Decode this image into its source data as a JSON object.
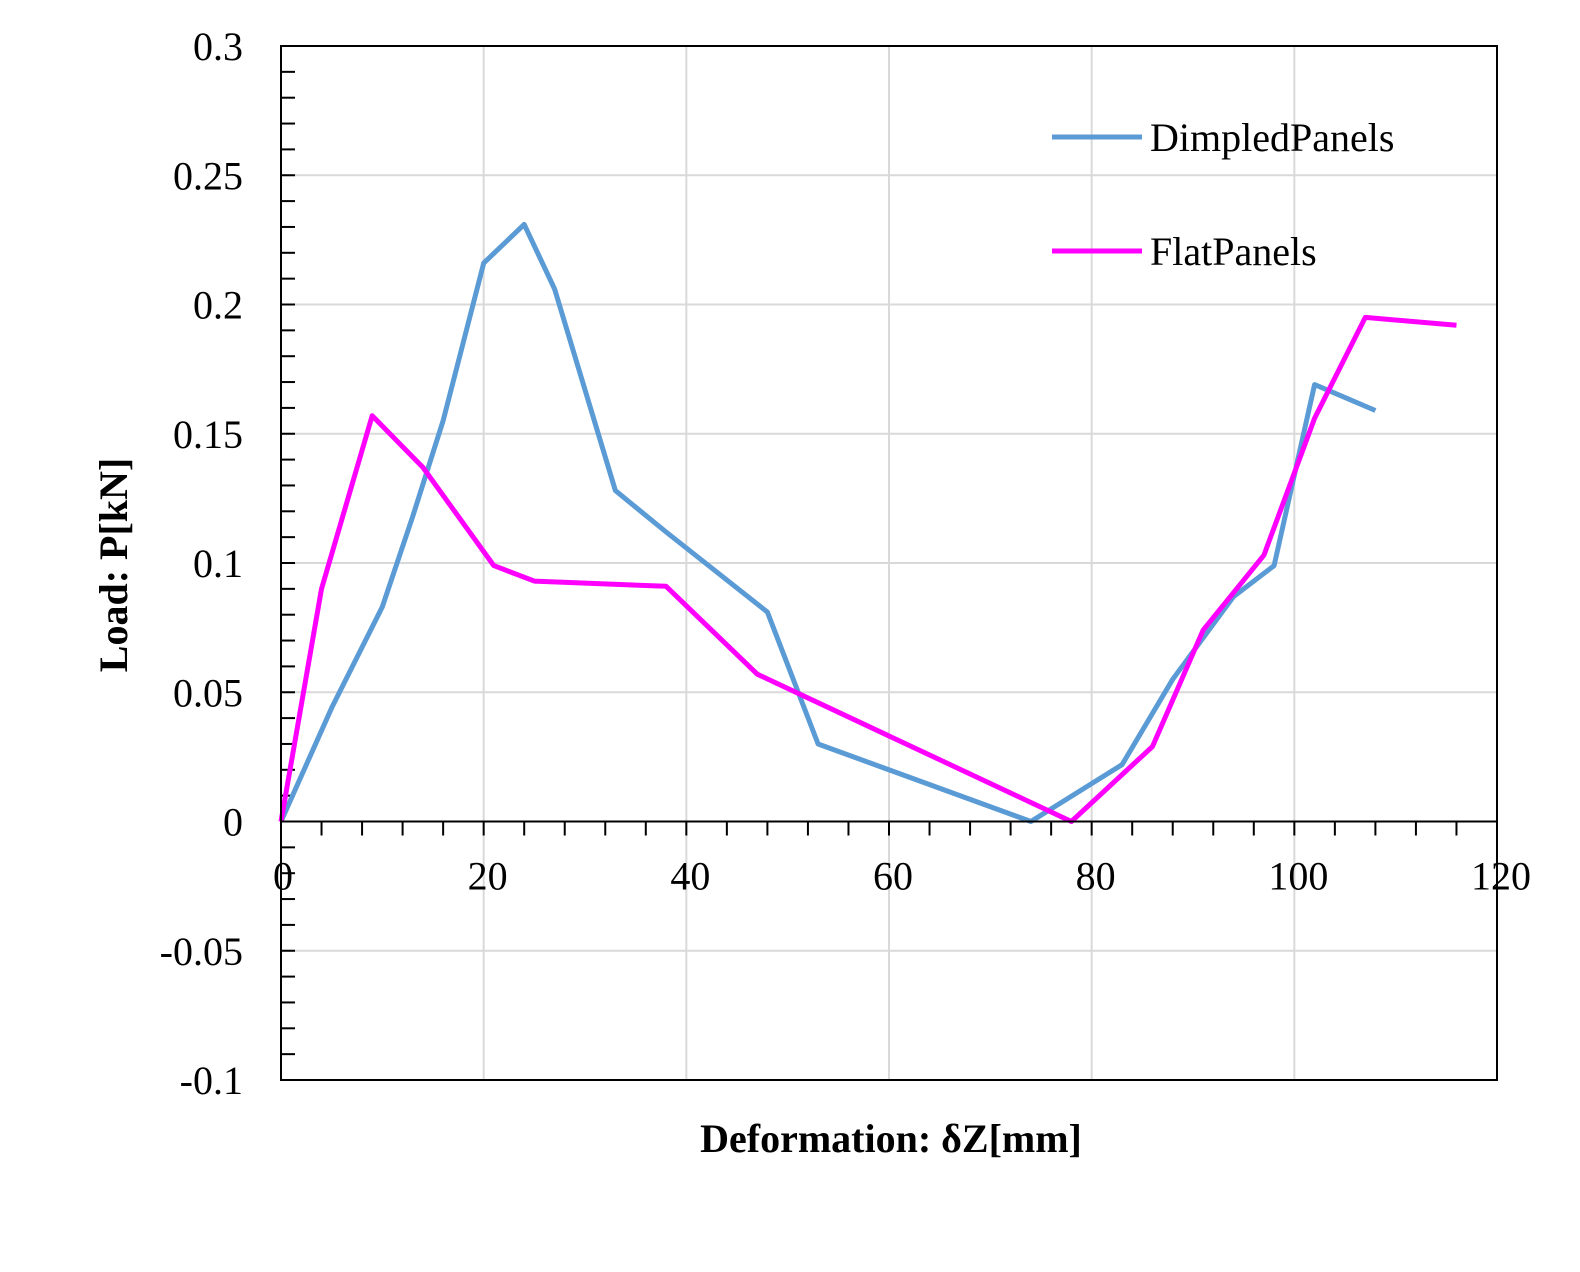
{
  "chart_data": {
    "type": "line",
    "title": "",
    "xlabel": "Deformation: δZ[mm]",
    "ylabel": "Load: P[kN]",
    "xlim": [
      0,
      120
    ],
    "ylim": [
      -0.1,
      0.3
    ],
    "x_ticks": [
      0,
      20,
      40,
      60,
      80,
      100,
      120
    ],
    "y_ticks": [
      -0.1,
      -0.05,
      0,
      0.05,
      0.1,
      0.15,
      0.2,
      0.25,
      0.3
    ],
    "x_tick_labels": [
      "0",
      "20",
      "40",
      "60",
      "80",
      "100",
      "120"
    ],
    "y_tick_labels": [
      "-0.1",
      "-0.05",
      "0",
      "0.05",
      "0.1",
      "0.15",
      "0.2",
      "0.25",
      "0.3"
    ],
    "grid": true,
    "legend_position": "top-right",
    "series": [
      {
        "name": "DimpledPanels",
        "color": "#5b9bd5",
        "points": [
          [
            0,
            0
          ],
          [
            5,
            0.044
          ],
          [
            10,
            0.083
          ],
          [
            13,
            0.118
          ],
          [
            16,
            0.155
          ],
          [
            20,
            0.216
          ],
          [
            24,
            0.231
          ],
          [
            27,
            0.206
          ],
          [
            33,
            0.128
          ],
          [
            38,
            0.112
          ],
          [
            48,
            0.081
          ],
          [
            53,
            0.03
          ],
          [
            74,
            0.0
          ],
          [
            83,
            0.022
          ],
          [
            88,
            0.055
          ],
          [
            94,
            0.087
          ],
          [
            98,
            0.099
          ],
          [
            102,
            0.169
          ],
          [
            108,
            0.159
          ]
        ]
      },
      {
        "name": "FlatPanels",
        "color": "#ff00ff",
        "points": [
          [
            0,
            0
          ],
          [
            4,
            0.09
          ],
          [
            9,
            0.157
          ],
          [
            14,
            0.137
          ],
          [
            21,
            0.099
          ],
          [
            25,
            0.093
          ],
          [
            38,
            0.091
          ],
          [
            47,
            0.057
          ],
          [
            78,
            0.0
          ],
          [
            86,
            0.029
          ],
          [
            91,
            0.074
          ],
          [
            97,
            0.103
          ],
          [
            102,
            0.156
          ],
          [
            107,
            0.195
          ],
          [
            116,
            0.192
          ]
        ]
      }
    ]
  }
}
